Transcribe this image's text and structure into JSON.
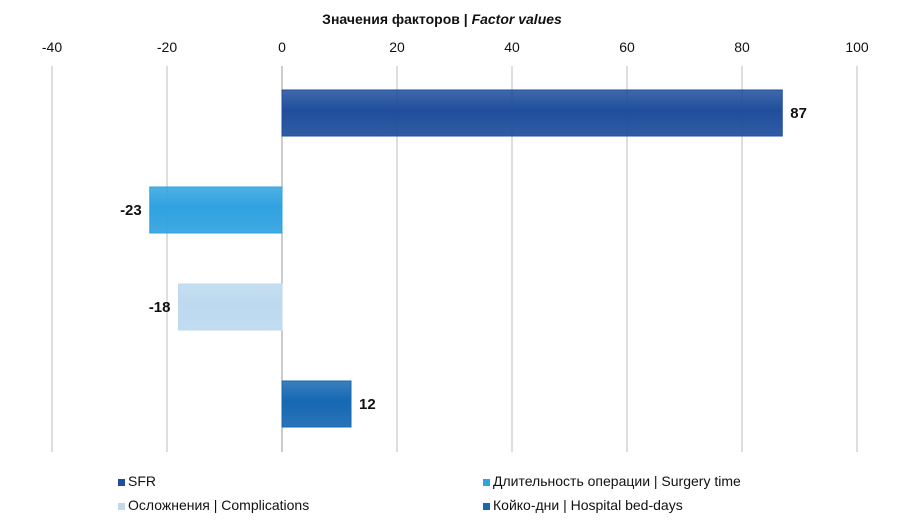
{
  "chart_data": {
    "type": "bar",
    "orientation": "horizontal",
    "title": "Значения факторов",
    "title_separator": " | ",
    "title_en": "Factor values",
    "xlim": [
      -40,
      100
    ],
    "xticks": [
      -40,
      -20,
      0,
      20,
      40,
      60,
      80,
      100
    ],
    "x_axis_position": "top",
    "grid": "vertical",
    "legend_position": "bottom",
    "bars": [
      {
        "name": "SFR",
        "value": 87,
        "label": "87",
        "color": "#1f4e9c"
      },
      {
        "name": "Длительность операции | Surgery time",
        "value": -23,
        "label": "-23",
        "color": "#2fa2e0"
      },
      {
        "name": "Осложнения | Complications",
        "value": -18,
        "label": "-18",
        "color": "#bcd9ef"
      },
      {
        "name": "Койко-дни | Hospital bed-days",
        "value": 12,
        "label": "12",
        "color": "#1668b2"
      }
    ]
  }
}
